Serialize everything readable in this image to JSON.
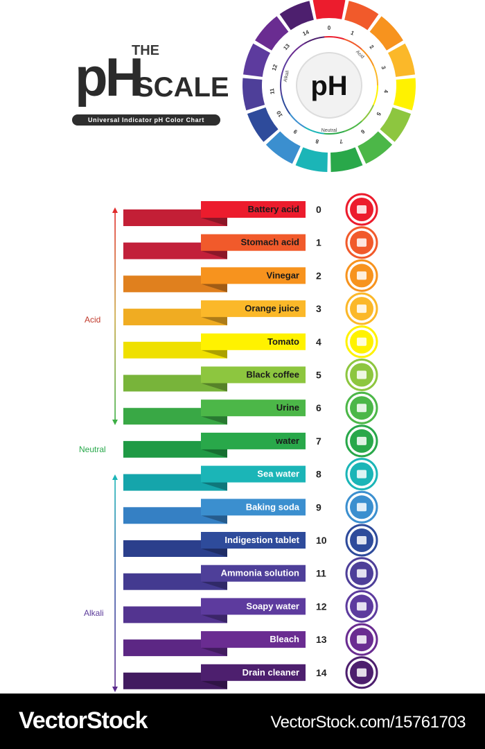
{
  "header": {
    "the": "THE",
    "ph": "pH",
    "scale": "SCALE",
    "subtitle": "Universal Indicator pH Color Chart"
  },
  "wheel": {
    "center_label": "pH",
    "arc_labels": {
      "acid": "Acid",
      "neutral": "Neutral",
      "alkali": "Alkali"
    }
  },
  "groups": {
    "acid": {
      "label": "Acid",
      "color": "#c0392b"
    },
    "neutral": {
      "label": "Neutral",
      "color": "#27a84a"
    },
    "alkali": {
      "label": "Alkali",
      "color": "#5b3a9a"
    }
  },
  "items": [
    {
      "ph": "0",
      "label": "Battery acid",
      "color": "#ec1c2d",
      "dark": "#c31f36",
      "icon": "battery-icon"
    },
    {
      "ph": "1",
      "label": "Stomach acid",
      "color": "#f15a2b",
      "dark": "#c2203a",
      "icon": "stomach-icon"
    },
    {
      "ph": "2",
      "label": "Vinegar",
      "color": "#f7931e",
      "dark": "#e0801e",
      "icon": "vinegar-bottle-icon"
    },
    {
      "ph": "3",
      "label": "Orange juice",
      "color": "#fbb829",
      "dark": "#f0ac22",
      "icon": "orange-juice-icon"
    },
    {
      "ph": "4",
      "label": "Tomato",
      "color": "#fff200",
      "dark": "#efe000",
      "icon": "tomato-icon"
    },
    {
      "ph": "5",
      "label": "Black coffee",
      "color": "#8dc63f",
      "dark": "#78b43a",
      "icon": "coffee-pot-icon"
    },
    {
      "ph": "6",
      "label": "Urine",
      "color": "#4cb748",
      "dark": "#39a845",
      "icon": "urine-sample-icon"
    },
    {
      "ph": "7",
      "label": "water",
      "color": "#29a84a",
      "dark": "#1f9a45",
      "icon": "water-drop-icon"
    },
    {
      "ph": "8",
      "label": "Sea water",
      "color": "#1bb5b7",
      "dark": "#15a5ab",
      "icon": "sea-waves-icon"
    },
    {
      "ph": "9",
      "label": "Baking soda",
      "color": "#3b8fcf",
      "dark": "#3580c4",
      "icon": "baking-soda-icon"
    },
    {
      "ph": "10",
      "label": "Indigestion tablet",
      "color": "#2e4b9b",
      "dark": "#2b3f8c",
      "icon": "stomach-tablet-icon"
    },
    {
      "ph": "11",
      "label": "Ammonia solution",
      "color": "#4e3f99",
      "dark": "#433a90",
      "icon": "flask-icon"
    },
    {
      "ph": "12",
      "label": "Soapy water",
      "color": "#5d3b9e",
      "dark": "#533490",
      "icon": "soap-bubbles-icon"
    },
    {
      "ph": "13",
      "label": "Bleach",
      "color": "#6a2c91",
      "dark": "#5c2784",
      "icon": "bleach-bottle-icon"
    },
    {
      "ph": "14",
      "label": "Drain cleaner",
      "color": "#4d1f6e",
      "dark": "#421b60",
      "icon": "drain-pipe-icon"
    }
  ],
  "footer": {
    "brand": "VectorStock",
    "url": "VectorStock.com/15761703"
  }
}
